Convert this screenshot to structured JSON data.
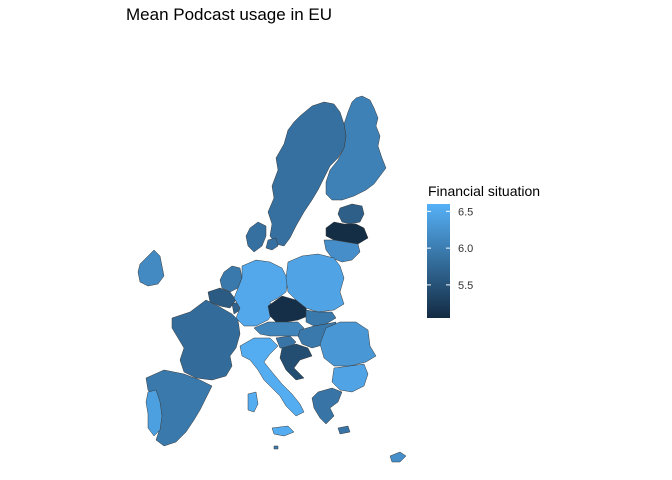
{
  "title": "Mean Podcast usage in EU",
  "legend": {
    "title": "Financial situation",
    "ticks": [
      "6.5",
      "6.0",
      "5.5"
    ],
    "tick_values": [
      6.5,
      6.0,
      5.5
    ],
    "range": [
      5.05,
      6.6
    ],
    "gradient_low_color": "#132B43",
    "gradient_high_color": "#56B1F7"
  },
  "colors": {
    "background": "#ffffff",
    "border": "#3a3a3a"
  },
  "chart_data": {
    "type": "choropleth",
    "title": "Mean Podcast usage in EU",
    "fill_variable": "Financial situation",
    "scale": {
      "low": "#132B43",
      "high": "#56B1F7",
      "min": 5.05,
      "max": 6.6
    },
    "regions": [
      {
        "name": "Finland",
        "value": 6.05
      },
      {
        "name": "Sweden",
        "value": 5.85
      },
      {
        "name": "Estonia",
        "value": 5.65
      },
      {
        "name": "Latvia",
        "value": 5.08
      },
      {
        "name": "Lithuania",
        "value": 6.2
      },
      {
        "name": "Denmark",
        "value": 5.85
      },
      {
        "name": "Ireland",
        "value": 6.15
      },
      {
        "name": "Netherlands",
        "value": 5.95
      },
      {
        "name": "Belgium",
        "value": 5.6
      },
      {
        "name": "Luxembourg",
        "value": 5.7
      },
      {
        "name": "Germany",
        "value": 6.5
      },
      {
        "name": "Poland",
        "value": 6.45
      },
      {
        "name": "Czechia",
        "value": 5.1
      },
      {
        "name": "Slovakia",
        "value": 5.95
      },
      {
        "name": "Austria",
        "value": 6.1
      },
      {
        "name": "Hungary",
        "value": 5.95
      },
      {
        "name": "Slovenia",
        "value": 5.9
      },
      {
        "name": "Croatia",
        "value": 5.45
      },
      {
        "name": "Romania",
        "value": 6.3
      },
      {
        "name": "Bulgaria",
        "value": 6.45
      },
      {
        "name": "France",
        "value": 5.8
      },
      {
        "name": "Spain",
        "value": 5.95
      },
      {
        "name": "Portugal",
        "value": 6.4
      },
      {
        "name": "Italy",
        "value": 6.55
      },
      {
        "name": "Greece",
        "value": 5.9
      },
      {
        "name": "Cyprus",
        "value": 6.2
      },
      {
        "name": "Malta",
        "value": 6.0
      }
    ]
  }
}
